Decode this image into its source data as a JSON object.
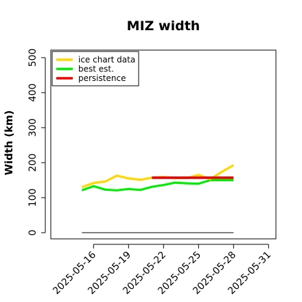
{
  "chart_data": {
    "type": "line",
    "title": "MIZ width",
    "xlabel": "",
    "ylabel": "Width (km)",
    "ylim": [
      0,
      520
    ],
    "yticks": [
      0,
      100,
      200,
      300,
      400,
      500
    ],
    "x_axis_start": "2025-05-14",
    "x_axis_end": "2025-06-01",
    "xticks": [
      "2025-05-16",
      "2025-05-19",
      "2025-05-22",
      "2025-05-25",
      "2025-05-28",
      "2025-05-31"
    ],
    "grid": false,
    "legend_position": "top-left",
    "series": [
      {
        "name": "ice chart data",
        "color": "#FFD700",
        "x": [
          "2025-05-15",
          "2025-05-16",
          "2025-05-17",
          "2025-05-18",
          "2025-05-19",
          "2025-05-20",
          "2025-05-21",
          "2025-05-22",
          "2025-05-23",
          "2025-05-24",
          "2025-05-25",
          "2025-05-26",
          "2025-05-27",
          "2025-05-28"
        ],
        "values": [
          130,
          142,
          146,
          163,
          155,
          151,
          157,
          159,
          156,
          156,
          165,
          153,
          174,
          193
        ]
      },
      {
        "name": "best est.",
        "color": "#00EE00",
        "x": [
          "2025-05-15",
          "2025-05-16",
          "2025-05-17",
          "2025-05-18",
          "2025-05-19",
          "2025-05-20",
          "2025-05-21",
          "2025-05-22",
          "2025-05-23",
          "2025-05-24",
          "2025-05-25",
          "2025-05-26",
          "2025-05-27",
          "2025-05-28"
        ],
        "values": [
          121,
          133,
          123,
          121,
          125,
          122,
          131,
          136,
          143,
          141,
          140,
          150,
          150,
          150
        ]
      },
      {
        "name": "persistence",
        "color": "#EE0000",
        "x": [
          "2025-05-21",
          "2025-05-28"
        ],
        "values": [
          157,
          157
        ]
      },
      {
        "name": "",
        "color": "#555555",
        "x": [
          "2025-05-15",
          "2025-05-28"
        ],
        "values": [
          0,
          0
        ]
      }
    ]
  }
}
